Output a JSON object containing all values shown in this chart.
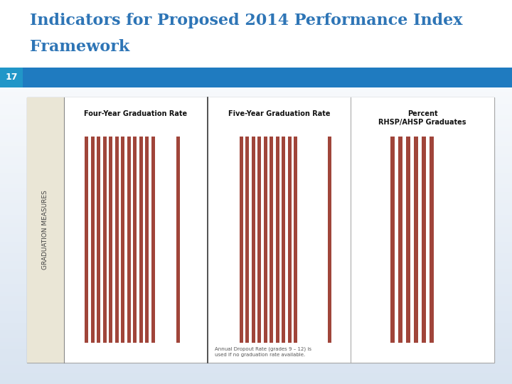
{
  "title_line1": "Indicators for Proposed 2014 Performance Index",
  "title_line2": "Framework",
  "title_color": "#2E75B6",
  "slide_number": "17",
  "blue_bar_color": "#1F7BC0",
  "slide_num_bg": "#2196C8",
  "background_top": "#FFFFFF",
  "background_bottom": "#D8E4F0",
  "chart_bg": "#F5F2E8",
  "sidebar_bg": "#EAE6D6",
  "bar_color": "#A0453A",
  "section1_label": "Four-Year Graduation Rate",
  "section2_label": "Five-Year Graduation Rate",
  "section3_label_line1": "Percent",
  "section3_label_line2": "RHSP/AHSP Graduates",
  "sidebar_label": "GRADUATION MEASURES",
  "footnote": "Annual Dropout Rate (grades 9 – 12) is\nused if no graduation rate available.",
  "section1_n_main": 12,
  "section1_n_extra": 1,
  "section2_n_main": 10,
  "section2_n_extra": 1,
  "section3_n_main": 6
}
